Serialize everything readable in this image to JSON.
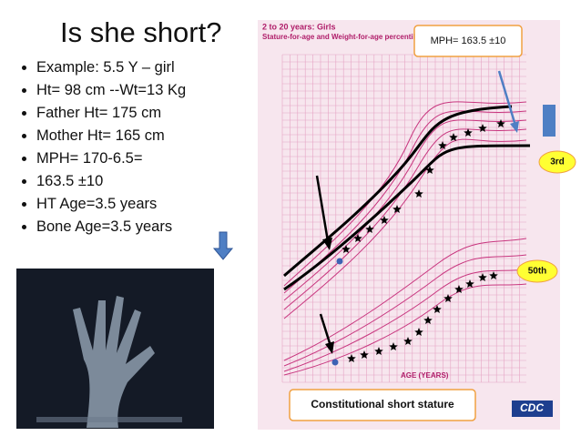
{
  "slide": {
    "title": "Is she short?",
    "bullets": [
      "Example: 5.5 Y – girl",
      "Ht= 98 cm --Wt=13 Kg",
      "Father Ht= 175 cm",
      "Mother Ht= 165 cm",
      "MPH= 170-6.5=",
      "163.5 ±10",
      "HT Age=3.5 years",
      "Bone Age=3.5 years"
    ],
    "chart": {
      "header": "2 to 20 years: Girls",
      "subheader": "Stature-for-age and Weight-for-age percentiles",
      "x_axis_label": "AGE (YEARS)",
      "logo": "CDC"
    },
    "callouts": {
      "mph": "MPH= 163.5 ±10",
      "third": "3rd",
      "fiftieth": "50th",
      "diagnosis": "Constitutional short stature"
    }
  }
}
